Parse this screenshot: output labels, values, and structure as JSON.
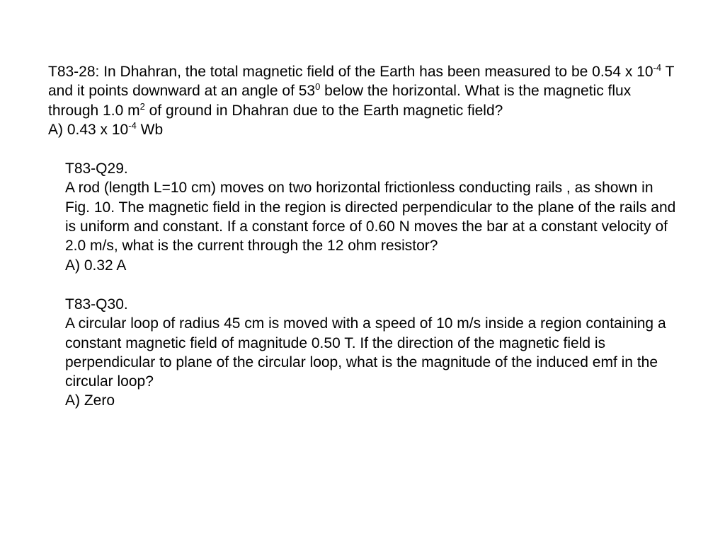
{
  "q28": {
    "text": "T83-28: In Dhahran, the total magnetic field of the Earth has been measured to be 0.54 x 10⁻⁴ T and it points downward at an angle of 53⁰ below the horizontal. What is the magnetic flux through 1.0 m² of ground in Dhahran due to the Earth magnetic field?",
    "answer": "A) 0.43 x 10⁻⁴ Wb"
  },
  "q29": {
    "heading": "T83-Q29.",
    "text": "A rod (length L=10 cm) moves on two horizontal frictionless conducting rails , as shown in Fig. 10. The magnetic field in the region is directed perpendicular to the plane of the rails and is uniform and constant. If a constant force of 0.60 N moves the bar at a constant velocity of 2.0 m/s, what is the current through the 12 ohm resistor?",
    "answer": "A) 0.32 A"
  },
  "q30": {
    "heading": "T83-Q30.",
    "text": "A circular loop of radius 45 cm is moved with a speed of 10 m/s inside a region containing a constant magnetic field of magnitude 0.50 T. If the direction of the magnetic field is perpendicular to plane of the circular loop, what is the magnitude of the induced emf in the circular loop?",
    "answer": "A) Zero"
  },
  "style": {
    "fontsize_pt": 21,
    "line_height": 1.3,
    "text_color": "#000000",
    "background_color": "#ffffff",
    "font_family": "Arial"
  }
}
